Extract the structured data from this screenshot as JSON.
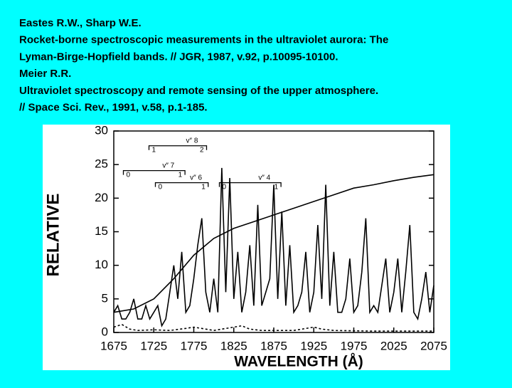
{
  "citation_lines": [
    "Eastes R.W., Sharp W.E.",
    "Rocket-borne spectroscopic measurements in the ultraviolet aurora: The",
    "Lyman-Birge-Hopfield bands. // JGR, 1987, v.92, p.10095-10100.",
    "Meier R.R.",
    "Ultraviolet spectroscopy and remote sensing of the upper atmosphere.",
    "// Space Sci. Rev., 1991, v.58, p.1-185."
  ],
  "chart_data": {
    "type": "line",
    "xlabel": "WAVELENGTH (Å)",
    "ylabel": "RELATIVE",
    "xlim": [
      1675,
      2075
    ],
    "ylim": [
      0,
      30
    ],
    "xticks": [
      1675,
      1725,
      1775,
      1825,
      1875,
      1925,
      1975,
      2025,
      2075
    ],
    "yticks": [
      0,
      5,
      10,
      15,
      20,
      25,
      30
    ],
    "x": [
      1675,
      1680,
      1685,
      1690,
      1695,
      1700,
      1705,
      1710,
      1715,
      1720,
      1725,
      1730,
      1735,
      1740,
      1745,
      1750,
      1755,
      1760,
      1765,
      1770,
      1775,
      1780,
      1785,
      1790,
      1795,
      1800,
      1805,
      1810,
      1815,
      1820,
      1825,
      1830,
      1835,
      1840,
      1845,
      1850,
      1855,
      1860,
      1865,
      1870,
      1875,
      1880,
      1885,
      1890,
      1895,
      1900,
      1905,
      1910,
      1915,
      1920,
      1925,
      1930,
      1935,
      1940,
      1945,
      1950,
      1955,
      1960,
      1965,
      1970,
      1975,
      1980,
      1985,
      1990,
      1995,
      2000,
      2005,
      2010,
      2015,
      2020,
      2025,
      2030,
      2035,
      2040,
      2045,
      2050,
      2055,
      2060,
      2065,
      2070,
      2075
    ],
    "series": [
      {
        "color": "#000000",
        "style": "solid",
        "values": [
          3,
          4,
          2,
          2,
          3,
          5,
          2,
          2,
          4,
          2,
          3,
          4,
          1,
          2,
          6,
          10,
          5,
          12,
          3,
          4,
          8,
          13,
          17,
          6,
          3,
          8,
          3,
          24.5,
          6,
          23,
          5,
          12,
          3,
          6,
          13,
          4,
          19,
          4,
          6,
          8,
          22,
          5,
          18,
          4,
          13,
          3,
          4,
          6,
          12,
          3,
          6,
          16,
          5,
          22,
          4,
          12,
          3,
          3,
          5,
          11,
          3,
          4,
          9,
          17,
          3,
          4,
          3,
          7,
          11,
          3,
          6,
          11,
          3,
          9,
          16,
          3,
          2,
          5,
          9,
          3,
          7
        ]
      },
      {
        "color": "#000000",
        "style": "solid",
        "x": [
          1675,
          1700,
          1725,
          1750,
          1775,
          1800,
          1825,
          1850,
          1875,
          1900,
          1925,
          1950,
          1975,
          2000,
          2025,
          2050,
          2075
        ],
        "values": [
          3,
          3.5,
          5,
          8,
          11.5,
          14,
          15.5,
          16.5,
          17.5,
          18.5,
          19.5,
          20.5,
          21.5,
          22,
          22.6,
          23.1,
          23.5
        ]
      },
      {
        "color": "#000000",
        "style": "dashed",
        "x": [
          1675,
          1685,
          1695,
          1705,
          1725,
          1745,
          1765,
          1775,
          1790,
          1800,
          1825,
          1835,
          1845,
          1860,
          1900,
          1925,
          1935,
          1950,
          2000,
          2075
        ],
        "values": [
          0.8,
          1.2,
          0.5,
          0.3,
          0.4,
          0.3,
          0.6,
          0.8,
          0.5,
          0.3,
          0.8,
          1.0,
          0.5,
          0.3,
          0.3,
          0.8,
          0.5,
          0.3,
          0.2,
          0.2
        ]
      }
    ],
    "annotations": [
      {
        "label": "v″ 8",
        "level": 27.8,
        "x": [
          1719,
          1791
        ],
        "ends": [
          "1",
          "2"
        ]
      },
      {
        "label": "v″ 7",
        "level": 24.1,
        "x": [
          1687,
          1764
        ],
        "ends": [
          "0",
          "1"
        ]
      },
      {
        "label": "v″ 6",
        "level": 22.3,
        "x": [
          1727,
          1793
        ],
        "ends": [
          "0",
          "1"
        ]
      },
      {
        "label": "v″ 4",
        "level": 22.3,
        "x": [
          1807,
          1884
        ],
        "ends": [
          "0",
          "1"
        ]
      }
    ]
  }
}
